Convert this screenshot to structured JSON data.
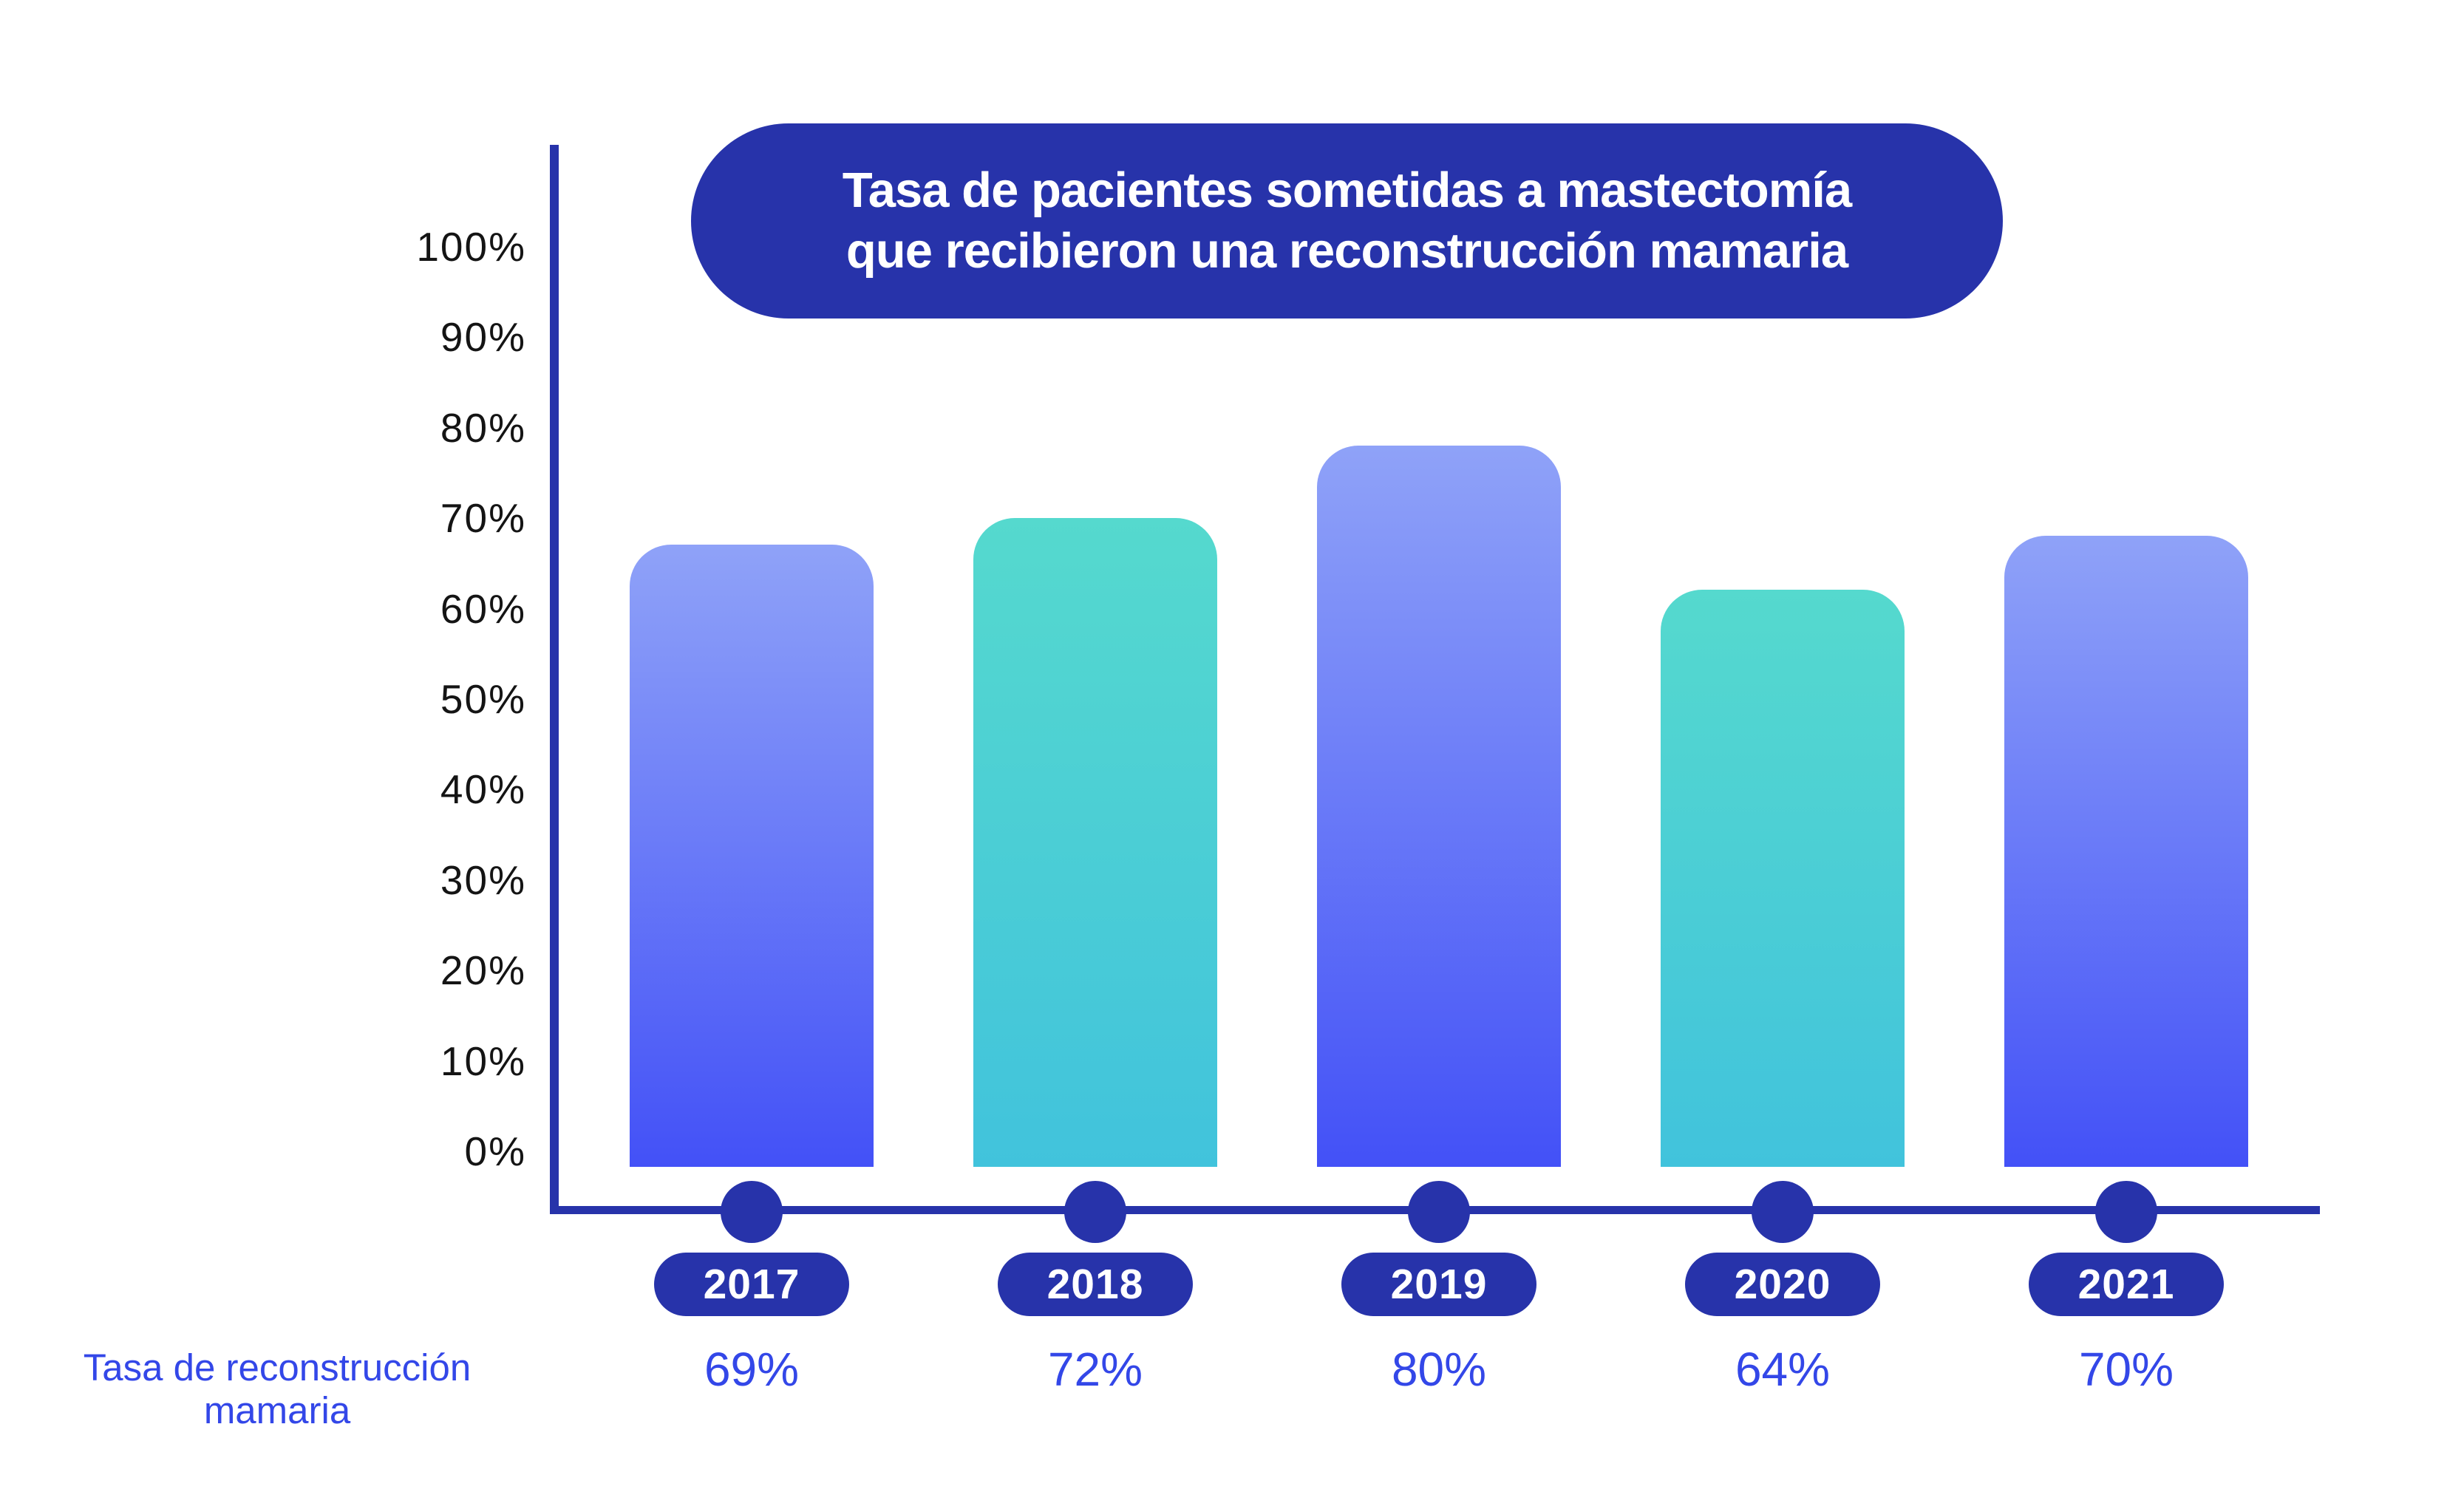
{
  "title": {
    "line1": "Tasa de pacientes sometidas a mastectomía",
    "line2": "que recibieron una reconstrucción mamaria"
  },
  "row_label": {
    "line1": "Tasa de reconstrucción",
    "line2": "mamaria"
  },
  "y_axis": {
    "tick_labels": [
      "100%",
      "90%",
      "80%",
      "70%",
      "60%",
      "50%",
      "40%",
      "30%",
      "20%",
      "10%",
      "0%"
    ]
  },
  "colors": {
    "deep_blue": "#2733AA",
    "bar_blue_top": "#8FA2F8",
    "bar_blue_bottom": "#4351F7",
    "bar_teal_top": "#55D9CE",
    "bar_teal_bottom": "#41C3DC",
    "value_text_blue": "#3347E8",
    "tick_text_black": "#141414",
    "title_text_white": "#FFFFFF",
    "background": "#FFFFFF"
  },
  "chart_data": {
    "type": "bar",
    "title": "Tasa de pacientes sometidas a mastectomía que recibieron una reconstrucción mamaria",
    "series_name": "Tasa de reconstrucción mamaria",
    "categories": [
      "2017",
      "2018",
      "2019",
      "2020",
      "2021"
    ],
    "values": [
      69,
      72,
      80,
      64,
      70
    ],
    "value_labels": [
      "69%",
      "72%",
      "80%",
      "64%",
      "70%"
    ],
    "bar_styles": [
      "blue-gradient",
      "teal-gradient",
      "blue-gradient",
      "teal-gradient",
      "blue-gradient"
    ],
    "xlabel": "",
    "ylabel": "",
    "ylim": [
      0,
      100
    ],
    "y_ticks": [
      "0%",
      "10%",
      "20%",
      "30%",
      "40%",
      "50%",
      "60%",
      "70%",
      "80%",
      "90%",
      "100%"
    ],
    "grid": false,
    "legend_position": "none"
  }
}
